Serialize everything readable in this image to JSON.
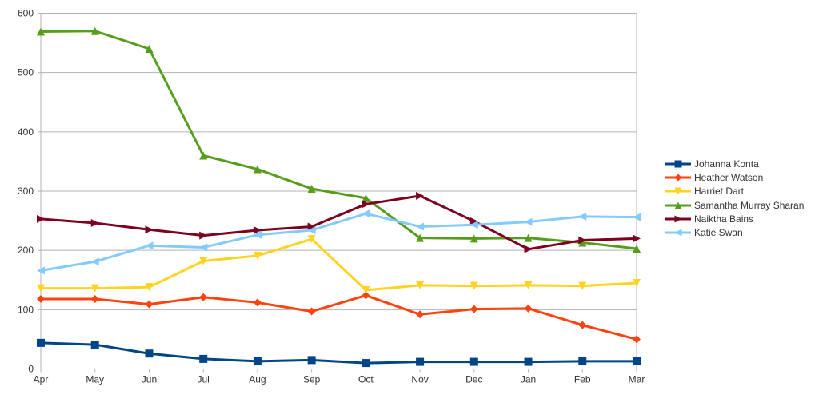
{
  "chart_data": {
    "type": "line",
    "title": "",
    "xlabel": "",
    "ylabel": "",
    "categories": [
      "Apr",
      "May",
      "Jun",
      "Jul",
      "Aug",
      "Sep",
      "Oct",
      "Nov",
      "Dec",
      "Jan",
      "Feb",
      "Mar"
    ],
    "ylim": [
      0,
      600
    ],
    "yticks": [
      "0",
      "100",
      "200",
      "300",
      "400",
      "500",
      "600"
    ],
    "grid": true,
    "legend_position": "right",
    "series": [
      {
        "name": "Johanna Konta",
        "color": "#004586",
        "marker": "square",
        "values": [
          44,
          41,
          26,
          17,
          13,
          15,
          10,
          12,
          12,
          12,
          13,
          13
        ]
      },
      {
        "name": "Heather Watson",
        "color": "#ff420e",
        "marker": "diamond",
        "values": [
          118,
          118,
          109,
          121,
          112,
          97,
          124,
          92,
          101,
          102,
          74,
          50
        ]
      },
      {
        "name": "Harriet Dart",
        "color": "#ffd320",
        "marker": "triangle-down",
        "values": [
          136,
          136,
          138,
          182,
          191,
          219,
          133,
          141,
          140,
          141,
          140,
          145
        ]
      },
      {
        "name": "Samantha Murray Sharan",
        "color": "#579d1c",
        "marker": "triangle-up",
        "values": [
          569,
          570,
          540,
          360,
          337,
          304,
          288,
          221,
          220,
          221,
          213,
          203
        ]
      },
      {
        "name": "Naiktha Bains",
        "color": "#7e0021",
        "marker": "triangle-right",
        "values": [
          253,
          246,
          235,
          225,
          234,
          240,
          278,
          292,
          249,
          202,
          217,
          220
        ]
      },
      {
        "name": "Katie Swan",
        "color": "#83caff",
        "marker": "triangle-left",
        "values": [
          166,
          181,
          208,
          205,
          226,
          234,
          262,
          240,
          243,
          248,
          257,
          256
        ]
      }
    ]
  }
}
